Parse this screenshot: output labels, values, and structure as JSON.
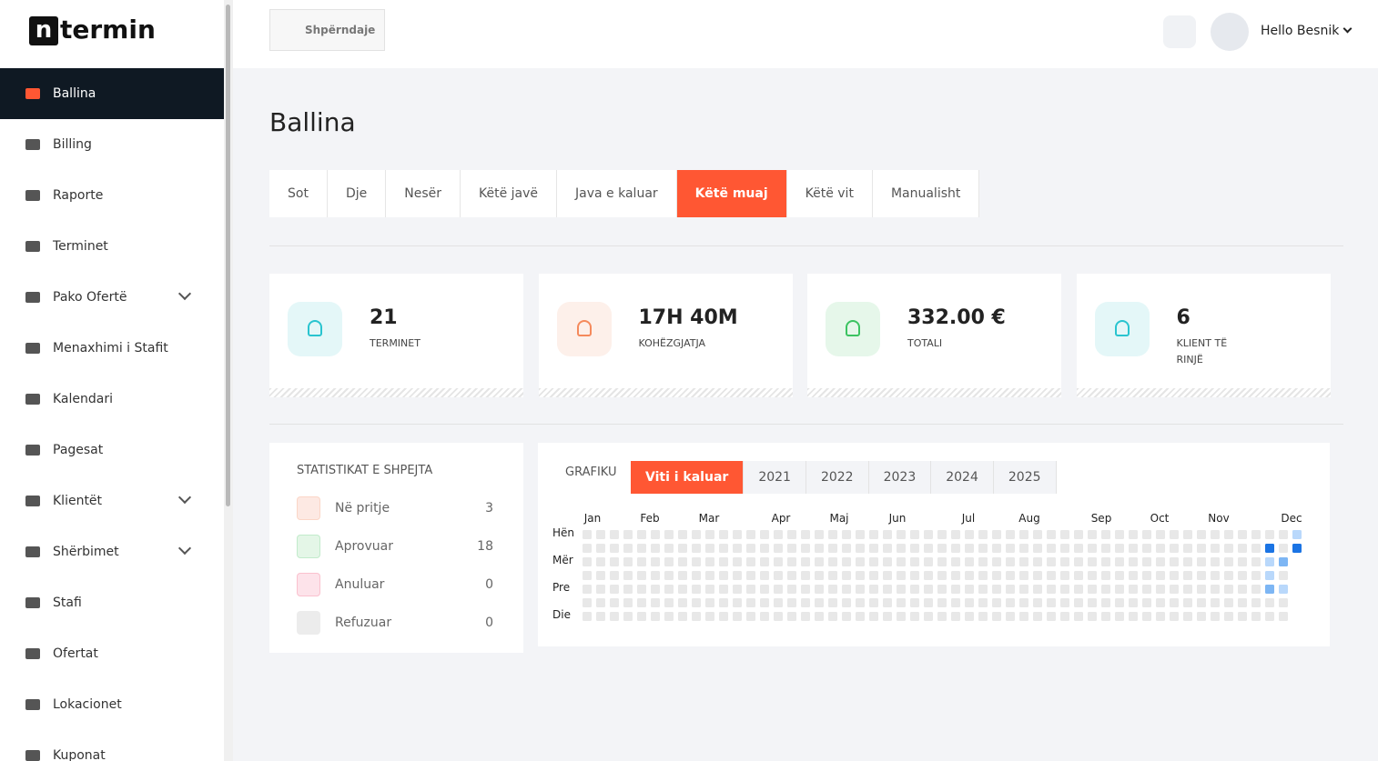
{
  "logo": {
    "letter": "n",
    "text": "termin"
  },
  "sidebar": {
    "items": [
      {
        "label": "Ballina",
        "active": true
      },
      {
        "label": "Billing"
      },
      {
        "label": "Raporte"
      },
      {
        "label": "Terminet"
      },
      {
        "label": "Pako Ofertë",
        "expandable": true
      },
      {
        "label": "Menaxhimi i Stafit"
      },
      {
        "label": "Kalendari"
      },
      {
        "label": "Pagesat"
      },
      {
        "label": "Klientët",
        "expandable": true
      },
      {
        "label": "Shërbimet",
        "expandable": true
      },
      {
        "label": "Stafi"
      },
      {
        "label": "Ofertat"
      },
      {
        "label": "Lokacionet"
      },
      {
        "label": "Kuponat"
      }
    ]
  },
  "header": {
    "share": "Shpërndaje",
    "greeting": "Hello Besnik"
  },
  "page_title": "Ballina",
  "filters": {
    "tabs": [
      "Sot",
      "Dje",
      "Nesër",
      "Këtë javë",
      "Java e kaluar",
      "Këtë muaj",
      "Këtë vit",
      "Manualisht"
    ],
    "active": 5
  },
  "stats": [
    {
      "value": "21",
      "label": "TERMINET"
    },
    {
      "value": "17H 40M",
      "label": "KOHËZGJATJA"
    },
    {
      "value": "332.00 €",
      "label": "TOTALI"
    },
    {
      "value": "6",
      "label": "KLIENT TË RINJË"
    }
  ],
  "quick_stats": {
    "title": "STATISTIKAT E SHPEJTA",
    "rows": [
      {
        "label": "Në pritje",
        "count": 3
      },
      {
        "label": "Aprovuar",
        "count": 18
      },
      {
        "label": "Anuluar",
        "count": 0
      },
      {
        "label": "Refuzuar",
        "count": 0
      }
    ]
  },
  "heatmap": {
    "title": "GRAFIKU",
    "tabs": [
      "Viti i kaluar",
      "2021",
      "2022",
      "2023",
      "2024",
      "2025"
    ],
    "active": 0,
    "months": [
      "Jan",
      "Feb",
      "Mar",
      "Apr",
      "Maj",
      "Jun",
      "Jul",
      "Aug",
      "Sep",
      "Oct",
      "Nov",
      "Dec"
    ],
    "days": [
      "Hën",
      "Mër",
      "Pre",
      "Die"
    ],
    "colors": [
      "#e8e8e8",
      "#b9d8fb",
      "#7db6f4",
      "#1b74e4"
    ],
    "values": [
      [
        0,
        0,
        0,
        0,
        0,
        0,
        0,
        0,
        0,
        0,
        0,
        0,
        0,
        0,
        0,
        0,
        0,
        0,
        0,
        0,
        0,
        0,
        0,
        0,
        0,
        0,
        0,
        0,
        0,
        0,
        0,
        0,
        0,
        0,
        0,
        0,
        0,
        0,
        0,
        0,
        0,
        0,
        0,
        0,
        0,
        0,
        0,
        0,
        0,
        0,
        0,
        0,
        1
      ],
      [
        0,
        0,
        0,
        0,
        0,
        0,
        0,
        0,
        0,
        0,
        0,
        0,
        0,
        0,
        0,
        0,
        0,
        0,
        0,
        0,
        0,
        0,
        0,
        0,
        0,
        0,
        0,
        0,
        0,
        0,
        0,
        0,
        0,
        0,
        0,
        0,
        0,
        0,
        0,
        0,
        0,
        0,
        0,
        0,
        0,
        0,
        0,
        0,
        0,
        0,
        3,
        0,
        3
      ],
      [
        0,
        0,
        0,
        0,
        0,
        0,
        0,
        0,
        0,
        0,
        0,
        0,
        0,
        0,
        0,
        0,
        0,
        0,
        0,
        0,
        0,
        0,
        0,
        0,
        0,
        0,
        0,
        0,
        0,
        0,
        0,
        0,
        0,
        0,
        0,
        0,
        0,
        0,
        0,
        0,
        0,
        0,
        0,
        0,
        0,
        0,
        0,
        0,
        0,
        0,
        1,
        2,
        null
      ],
      [
        0,
        0,
        0,
        0,
        0,
        0,
        0,
        0,
        0,
        0,
        0,
        0,
        0,
        0,
        0,
        0,
        0,
        0,
        0,
        0,
        0,
        0,
        0,
        0,
        0,
        0,
        0,
        0,
        0,
        0,
        0,
        0,
        0,
        0,
        0,
        0,
        0,
        0,
        0,
        0,
        0,
        0,
        0,
        0,
        0,
        0,
        0,
        0,
        0,
        0,
        1,
        0,
        null
      ],
      [
        0,
        0,
        0,
        0,
        0,
        0,
        0,
        0,
        0,
        0,
        0,
        0,
        0,
        0,
        0,
        0,
        0,
        0,
        0,
        0,
        0,
        0,
        0,
        0,
        0,
        0,
        0,
        0,
        0,
        0,
        0,
        0,
        0,
        0,
        0,
        0,
        0,
        0,
        0,
        0,
        0,
        0,
        0,
        0,
        0,
        0,
        0,
        0,
        0,
        0,
        2,
        1,
        null
      ],
      [
        0,
        0,
        0,
        0,
        0,
        0,
        0,
        0,
        0,
        0,
        0,
        0,
        0,
        0,
        0,
        0,
        0,
        0,
        0,
        0,
        0,
        0,
        0,
        0,
        0,
        0,
        0,
        0,
        0,
        0,
        0,
        0,
        0,
        0,
        0,
        0,
        0,
        0,
        0,
        0,
        0,
        0,
        0,
        0,
        0,
        0,
        0,
        0,
        0,
        0,
        0,
        0,
        null
      ],
      [
        0,
        0,
        0,
        0,
        0,
        0,
        0,
        0,
        0,
        0,
        0,
        0,
        0,
        0,
        0,
        0,
        0,
        0,
        0,
        0,
        0,
        0,
        0,
        0,
        0,
        0,
        0,
        0,
        0,
        0,
        0,
        0,
        0,
        0,
        0,
        0,
        0,
        0,
        0,
        0,
        0,
        0,
        0,
        0,
        0,
        0,
        0,
        0,
        0,
        0,
        0,
        0,
        null
      ]
    ]
  }
}
